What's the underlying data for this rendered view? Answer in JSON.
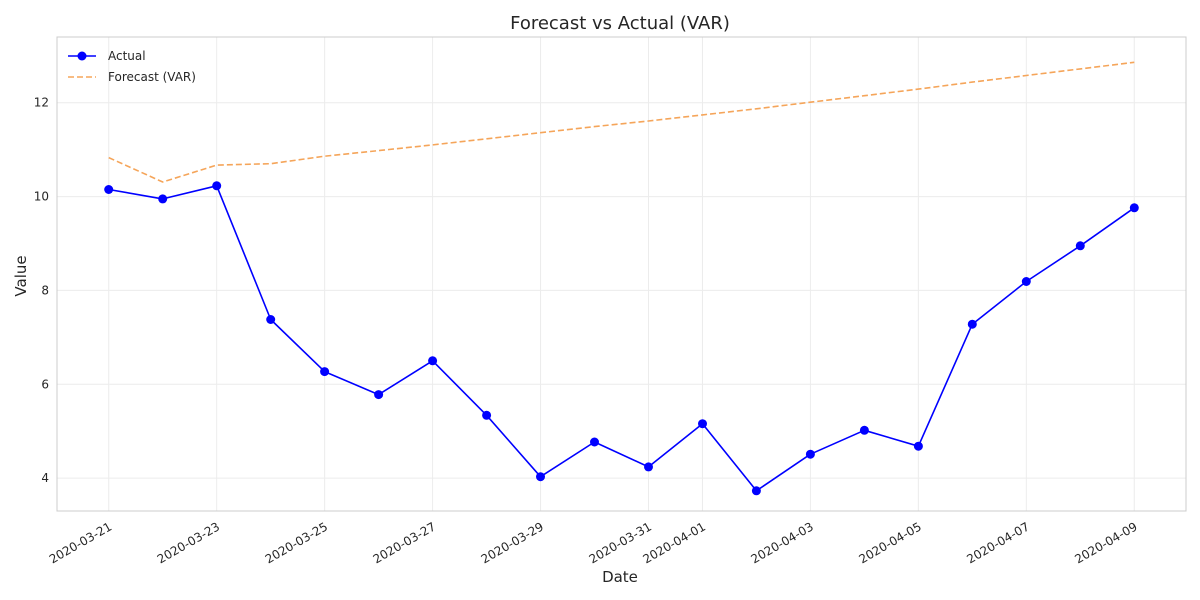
{
  "chart_data": {
    "type": "line",
    "title": "Forecast vs Actual (VAR)",
    "xlabel": "Date",
    "ylabel": "Value",
    "x": [
      "2020-03-21",
      "2020-03-22",
      "2020-03-23",
      "2020-03-24",
      "2020-03-25",
      "2020-03-26",
      "2020-03-27",
      "2020-03-28",
      "2020-03-29",
      "2020-03-30",
      "2020-03-31",
      "2020-04-01",
      "2020-04-02",
      "2020-04-03",
      "2020-04-04",
      "2020-04-05",
      "2020-04-06",
      "2020-04-07",
      "2020-04-08",
      "2020-04-09"
    ],
    "x_tick_labels": [
      "2020-03-21",
      "2020-03-23",
      "2020-03-25",
      "2020-03-27",
      "2020-03-29",
      "2020-03-31",
      "2020-04-01",
      "2020-04-03",
      "2020-04-05",
      "2020-04-07",
      "2020-04-09"
    ],
    "y_ticks": [
      4,
      6,
      8,
      10,
      12
    ],
    "ylim": [
      3.3,
      13.4
    ],
    "xlim": [
      "2020-03-20T01:00",
      "2020-04-09T23:00"
    ],
    "grid": true,
    "legend_position": "top-left",
    "series": [
      {
        "name": "Actual",
        "color": "#0000ff",
        "style": "solid",
        "marker": "circle",
        "values": [
          10.15,
          9.95,
          10.23,
          7.38,
          6.27,
          5.78,
          6.5,
          5.34,
          4.03,
          4.77,
          4.24,
          5.16,
          3.73,
          4.51,
          5.02,
          4.68,
          7.28,
          8.19,
          8.95,
          9.76
        ]
      },
      {
        "name": "Forecast (VAR)",
        "color": "#f5a55a",
        "style": "dashed",
        "marker": "none",
        "values": [
          10.83,
          10.31,
          10.67,
          10.7,
          10.86,
          10.98,
          11.1,
          11.23,
          11.36,
          11.49,
          11.61,
          11.74,
          11.87,
          12.01,
          12.15,
          12.29,
          12.44,
          12.58,
          12.72,
          12.86
        ]
      }
    ]
  }
}
